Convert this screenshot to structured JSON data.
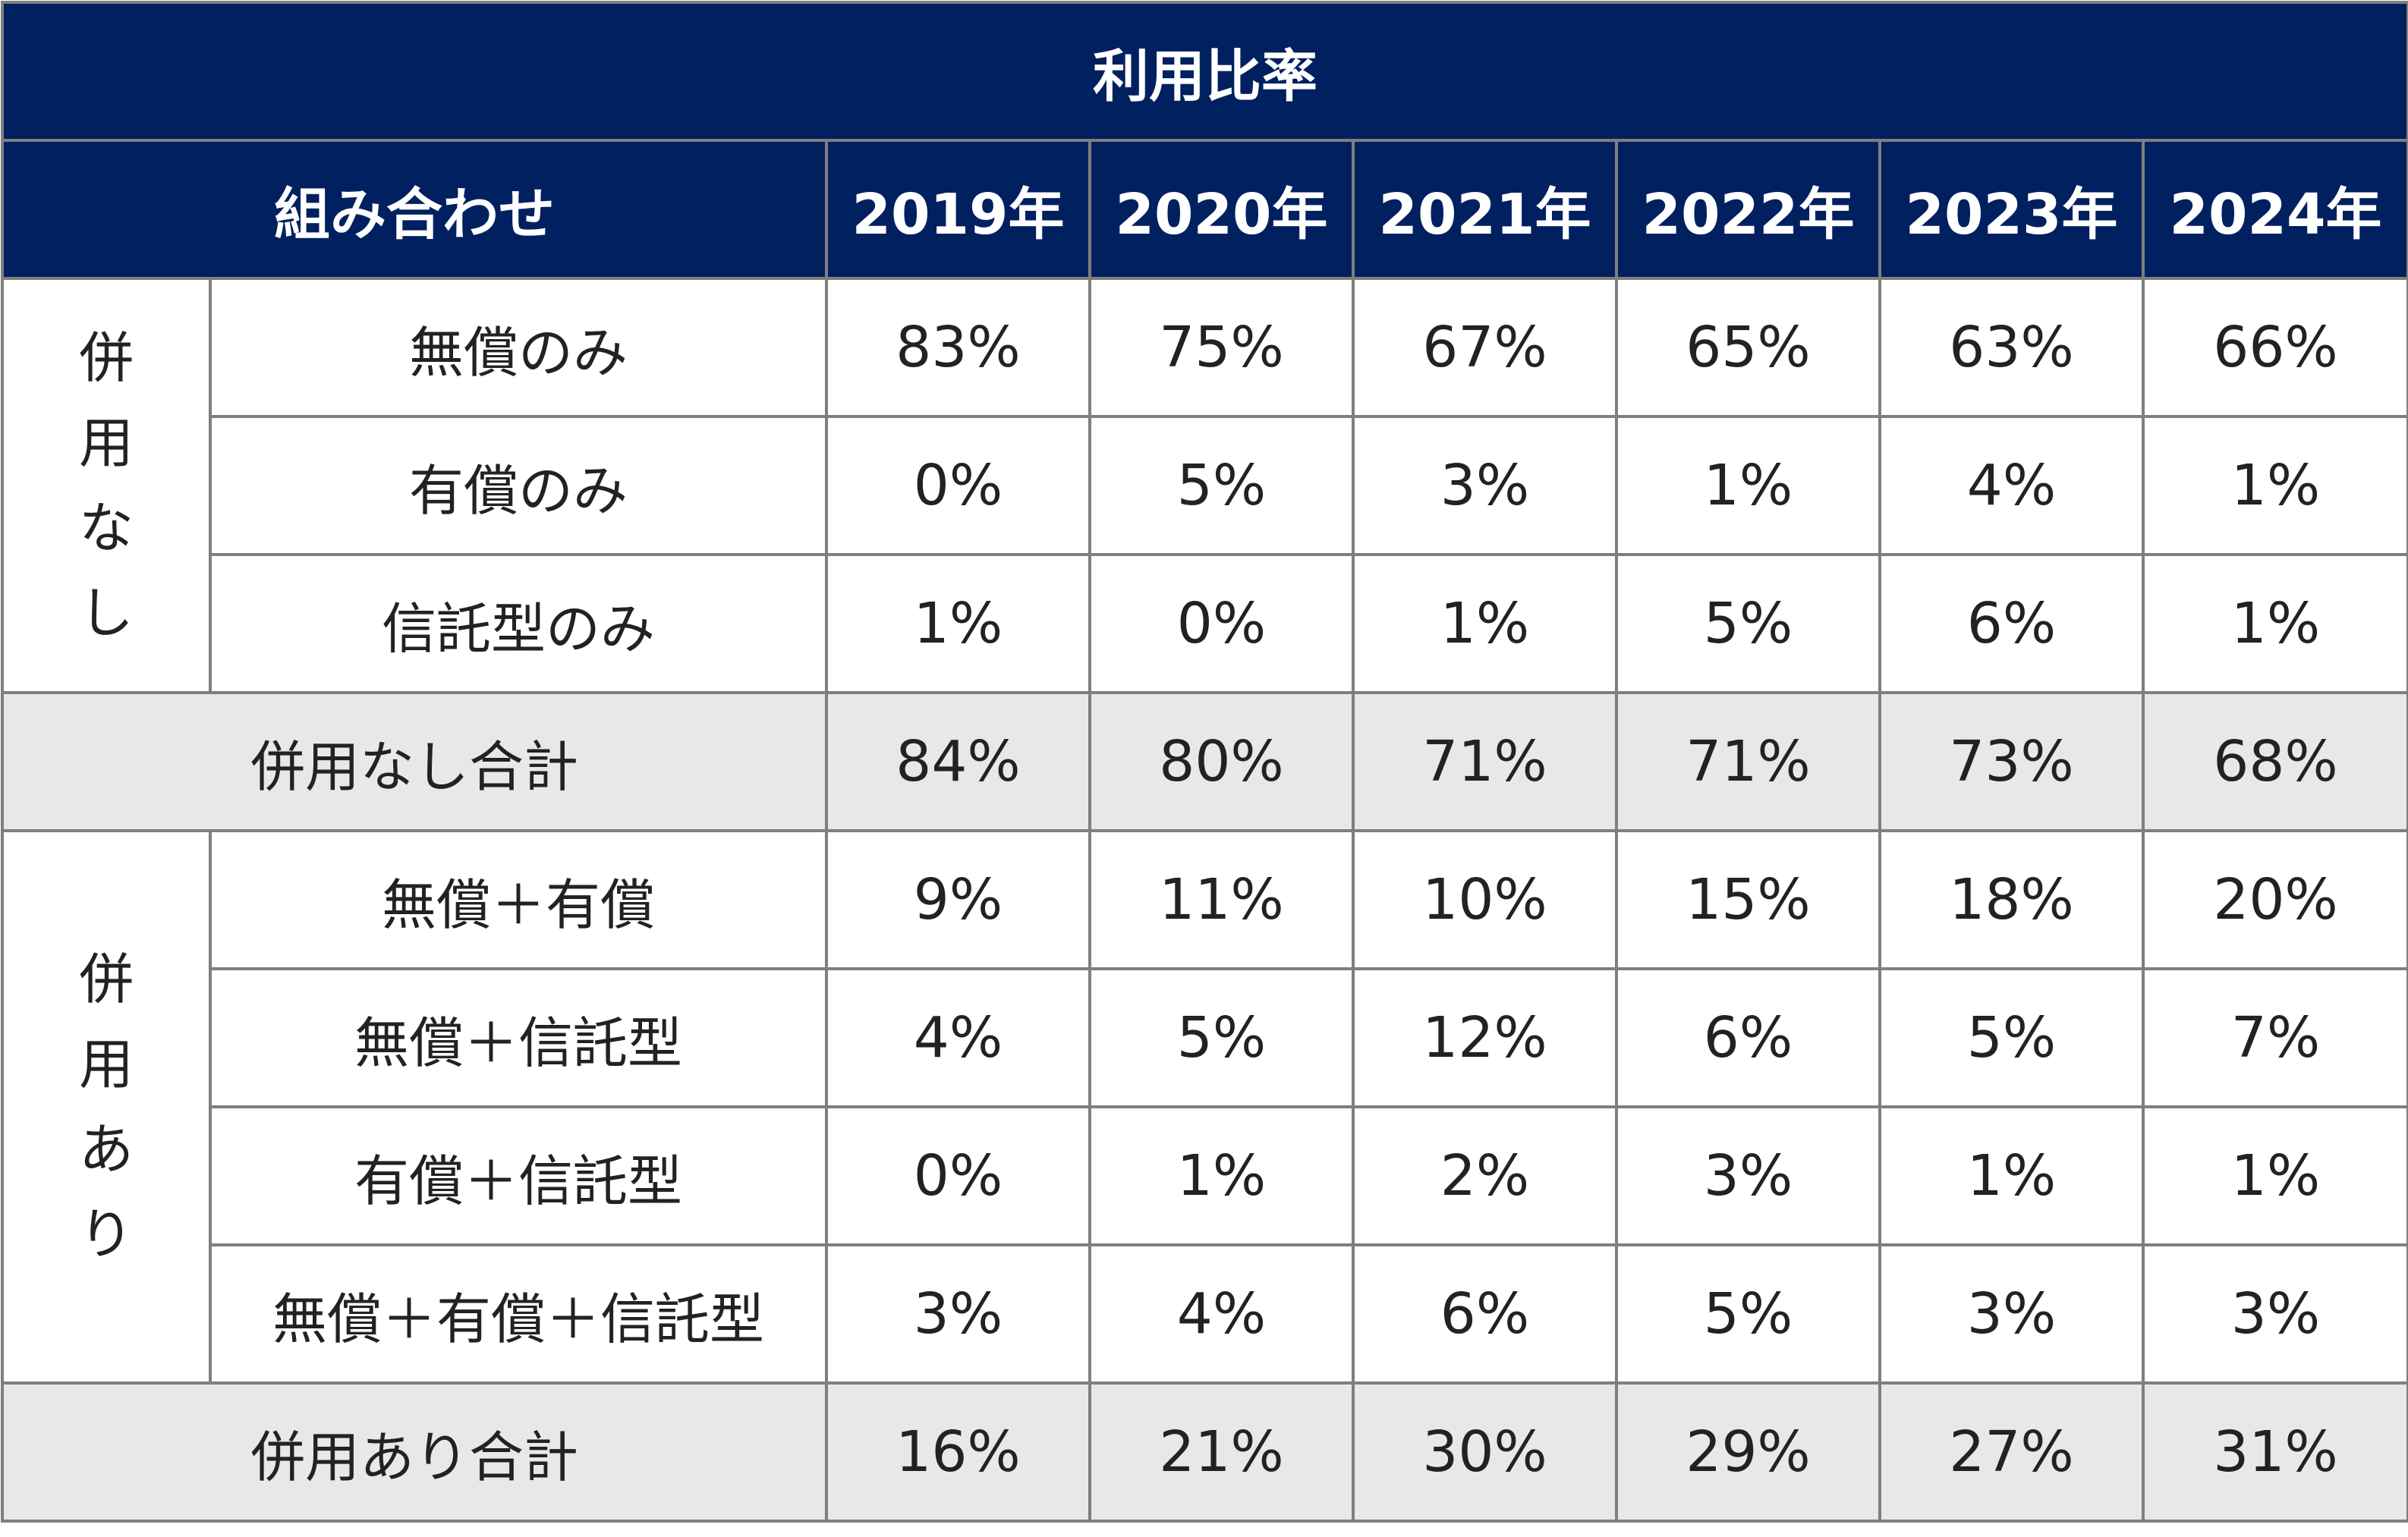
{
  "chart_data": {
    "type": "table",
    "title": "利用比率",
    "header_label": "組み合わせ",
    "years": [
      "2019年",
      "2020年",
      "2021年",
      "2022年",
      "2023年",
      "2024年"
    ],
    "groups": [
      {
        "name": "併用なし",
        "rows": [
          {
            "label": "無償のみ",
            "values": [
              "83%",
              "75%",
              "67%",
              "65%",
              "63%",
              "66%"
            ]
          },
          {
            "label": "有償のみ",
            "values": [
              "0%",
              "5%",
              "3%",
              "1%",
              "4%",
              "1%"
            ]
          },
          {
            "label": "信託型のみ",
            "values": [
              "1%",
              "0%",
              "1%",
              "5%",
              "6%",
              "1%"
            ]
          }
        ],
        "total": {
          "label": "併用なし合計",
          "values": [
            "84%",
            "80%",
            "71%",
            "71%",
            "73%",
            "68%"
          ]
        }
      },
      {
        "name": "併用あり",
        "rows": [
          {
            "label": "無償＋有償",
            "values": [
              "9%",
              "11%",
              "10%",
              "15%",
              "18%",
              "20%"
            ]
          },
          {
            "label": "無償＋信託型",
            "values": [
              "4%",
              "5%",
              "12%",
              "6%",
              "5%",
              "7%"
            ]
          },
          {
            "label": "有償＋信託型",
            "values": [
              "0%",
              "1%",
              "2%",
              "3%",
              "1%",
              "1%"
            ]
          },
          {
            "label": "無償＋有償＋信託型",
            "values": [
              "3%",
              "4%",
              "6%",
              "5%",
              "3%",
              "3%"
            ]
          }
        ],
        "total": {
          "label": "併用あり合計",
          "values": [
            "16%",
            "21%",
            "30%",
            "29%",
            "27%",
            "31%"
          ]
        }
      }
    ]
  },
  "colors": {
    "header_bg": "#002060",
    "header_text": "#ffffff",
    "total_row_bg": "#e8e8e8",
    "border": "#7f7f7f"
  }
}
